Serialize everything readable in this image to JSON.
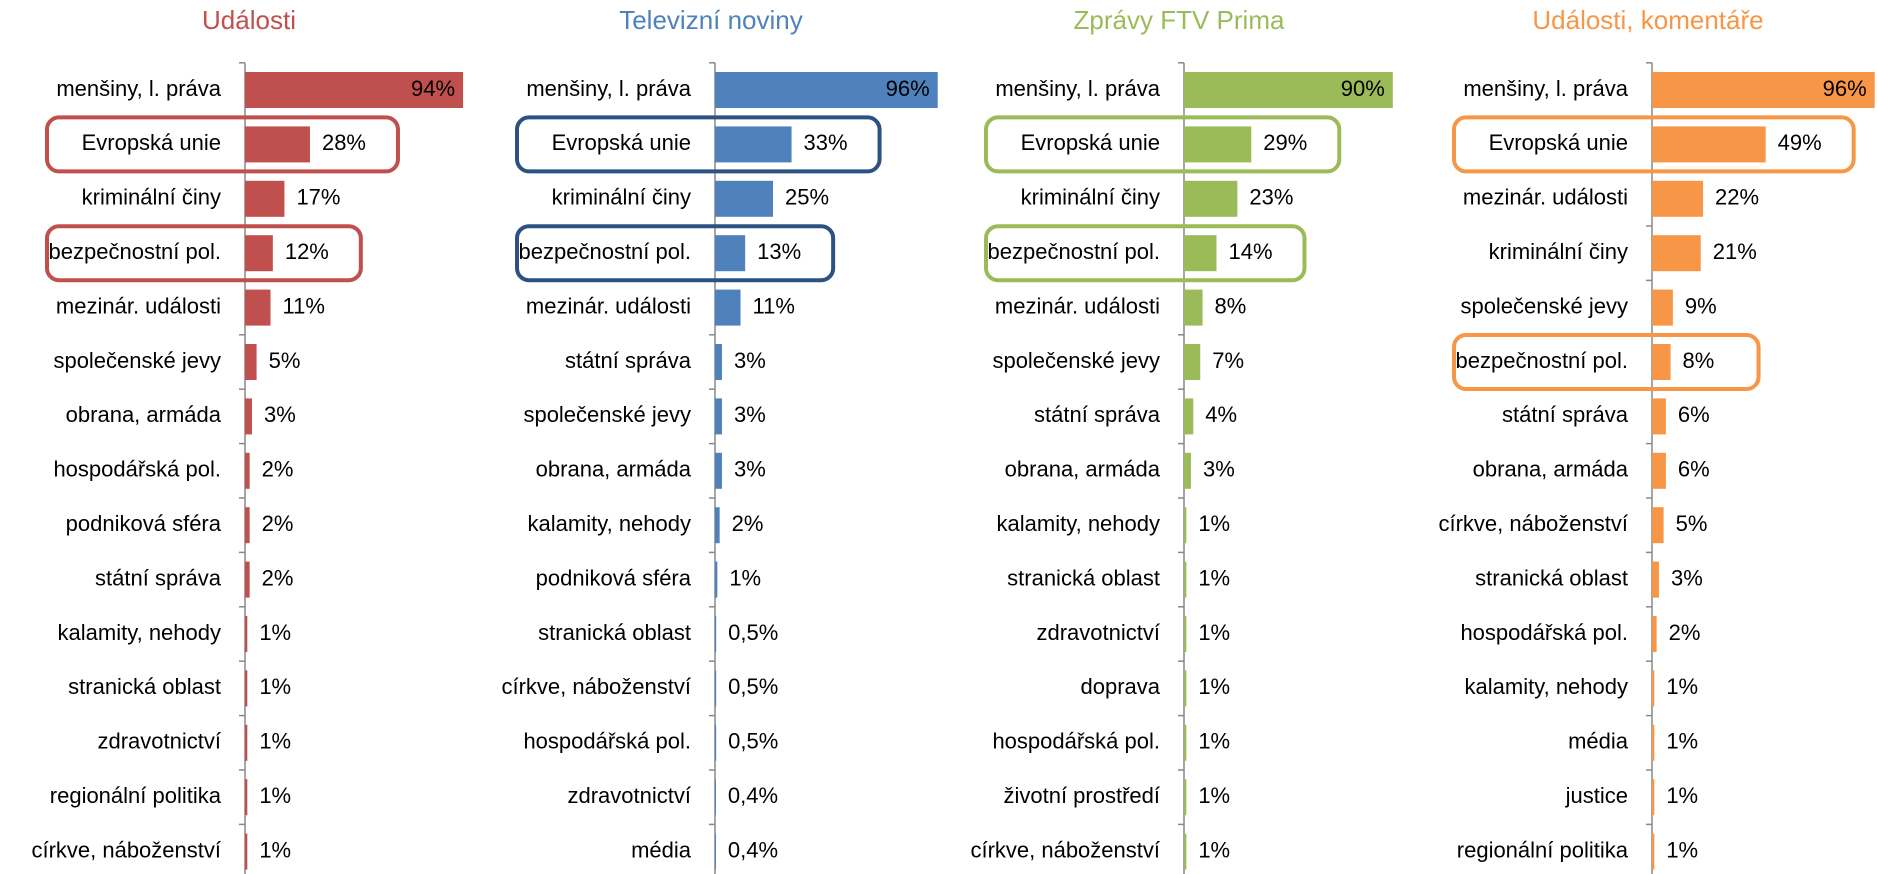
{
  "chart_data": [
    {
      "type": "bar",
      "title": "Události",
      "color": "#c0504d",
      "highlight_color": "#c0504d",
      "highlight": [
        1,
        3
      ],
      "categories": [
        "menšiny, l. práva",
        "Evropská unie",
        "kriminální činy",
        "bezpečnostní pol.",
        "mezinár. události",
        "společenské jevy",
        "obrana, armáda",
        "hospodářská pol.",
        "podniková sféra",
        "státní správa",
        "kalamity, nehody",
        "stranická oblast",
        "zdravotnictví",
        "regionální politika",
        "církve, náboženství"
      ],
      "values": [
        94,
        28,
        17,
        12,
        11,
        5,
        3,
        2,
        2,
        2,
        1,
        1,
        1,
        1,
        1
      ],
      "value_labels": [
        "94%",
        "28%",
        "17%",
        "12%",
        "11%",
        "5%",
        "3%",
        "2%",
        "2%",
        "2%",
        "1%",
        "1%",
        "1%",
        "1%",
        "1%"
      ]
    },
    {
      "type": "bar",
      "title": "Televizní noviny",
      "color": "#4f81bd",
      "highlight_color": "#2c5282",
      "highlight": [
        1,
        3
      ],
      "categories": [
        "menšiny, l. práva",
        "Evropská unie",
        "kriminální činy",
        "bezpečnostní pol.",
        "mezinár. události",
        "státní správa",
        "společenské jevy",
        "obrana, armáda",
        "kalamity, nehody",
        "podniková sféra",
        "stranická oblast",
        "církve, náboženství",
        "hospodářská pol.",
        "zdravotnictví",
        "média"
      ],
      "values": [
        96,
        33,
        25,
        13,
        11,
        3,
        3,
        3,
        2,
        1,
        0.5,
        0.5,
        0.5,
        0.4,
        0.4
      ],
      "value_labels": [
        "96%",
        "33%",
        "25%",
        "13%",
        "11%",
        "3%",
        "3%",
        "3%",
        "2%",
        "1%",
        "0,5%",
        "0,5%",
        "0,5%",
        "0,4%",
        "0,4%"
      ]
    },
    {
      "type": "bar",
      "title": "Zprávy FTV Prima",
      "color": "#9bbb59",
      "highlight_color": "#9bbb59",
      "highlight": [
        1,
        3
      ],
      "categories": [
        "menšiny, l. práva",
        "Evropská unie",
        "kriminální činy",
        "bezpečnostní pol.",
        "mezinár. události",
        "společenské jevy",
        "státní správa",
        "obrana, armáda",
        "kalamity, nehody",
        "stranická oblast",
        "zdravotnictví",
        "doprava",
        "hospodářská pol.",
        "životní prostředí",
        "církve, náboženství"
      ],
      "values": [
        90,
        29,
        23,
        14,
        8,
        7,
        4,
        3,
        1,
        1,
        1,
        1,
        1,
        1,
        1
      ],
      "value_labels": [
        "90%",
        "29%",
        "23%",
        "14%",
        "8%",
        "7%",
        "4%",
        "3%",
        "1%",
        "1%",
        "1%",
        "1%",
        "1%",
        "1%",
        "1%"
      ]
    },
    {
      "type": "bar",
      "title": "Události, komentáře",
      "color": "#f79646",
      "highlight_color": "#f79646",
      "highlight": [
        1,
        5
      ],
      "categories": [
        "menšiny, l. práva",
        "Evropská unie",
        "mezinár. události",
        "kriminální činy",
        "společenské jevy",
        "bezpečnostní pol.",
        "státní správa",
        "obrana, armáda",
        "církve, náboženství",
        "stranická oblast",
        "hospodářská pol.",
        "kalamity, nehody",
        "média",
        "justice",
        "regionální politika"
      ],
      "values": [
        96,
        49,
        22,
        21,
        9,
        8,
        6,
        6,
        5,
        3,
        2,
        1,
        1,
        1,
        1
      ],
      "value_labels": [
        "96%",
        "49%",
        "22%",
        "21%",
        "9%",
        "8%",
        "6%",
        "6%",
        "5%",
        "3%",
        "2%",
        "1%",
        "1%",
        "1%",
        "1%"
      ]
    }
  ]
}
